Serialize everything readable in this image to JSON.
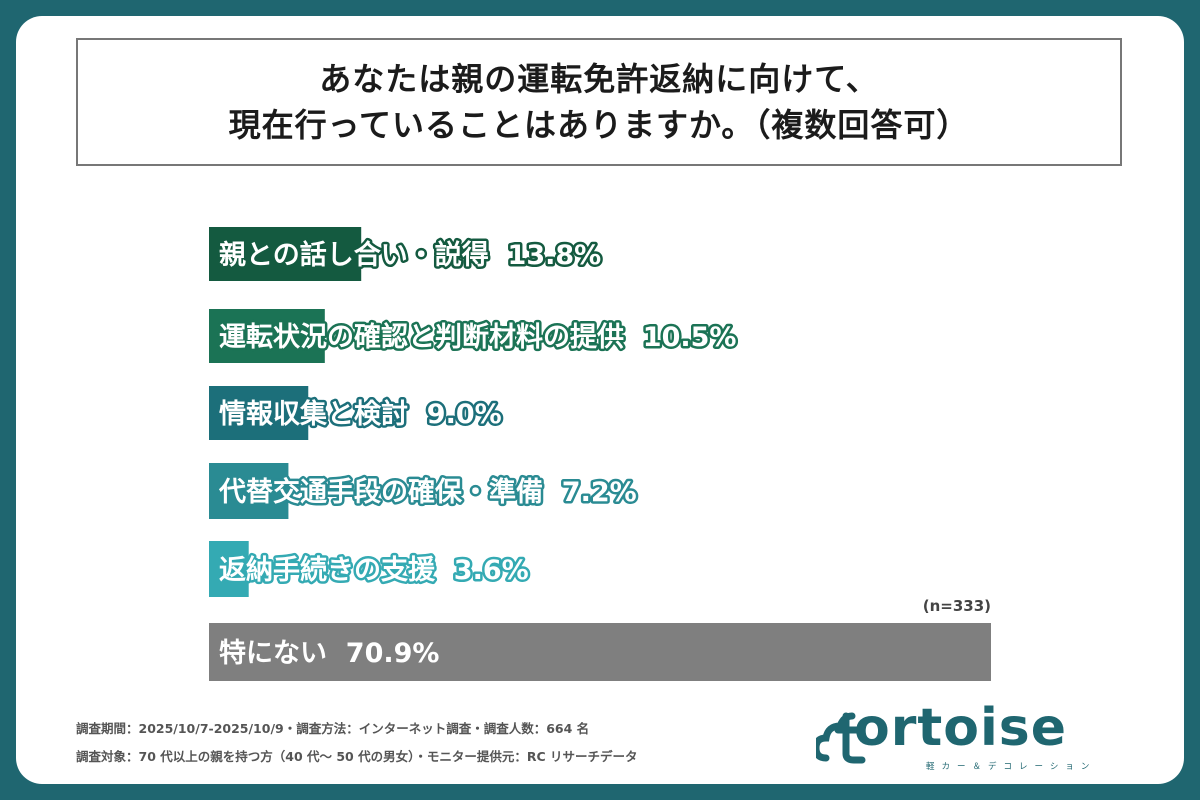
{
  "title_lines": [
    "あなたは親の運転免許返納に向けて、",
    "現在行っていることはありますか。（複数回答可）"
  ],
  "sample_size": "(n=333)",
  "footnotes": [
    "調査期間：2025/10/7-2025/10/9・調査方法：インターネット調査・調査人数：664 名",
    "調査対象：70 代以上の親を持つ方（40 代～ 50 代の男女）・モニター提供元：RC リサーチデータ"
  ],
  "logo": {
    "word": "ortoise",
    "sub": "軽カー＆デコレーション",
    "icon": "cloud-t-icon"
  },
  "colors": {
    "background": "#1f6670",
    "other_bar": "#7f7f7f"
  },
  "chart_data": {
    "type": "bar",
    "orientation": "horizontal",
    "unit": "%",
    "xlim": [
      0,
      70.9
    ],
    "categories": [
      "親との話し合い・説得",
      "運転状況の確認と判断材料の提供",
      "情報収集と検討",
      "代替交通手段の確保・準備",
      "返納手続きの支援",
      "特にない"
    ],
    "values": [
      13.8,
      10.5,
      9.0,
      7.2,
      3.6,
      70.9
    ],
    "value_labels": [
      "13.8%",
      "10.5%",
      "9.0%",
      "7.2%",
      "3.6%",
      "70.9%"
    ],
    "bar_colors": [
      "#145a40",
      "#1b7355",
      "#1c6f7a",
      "#2a8b93",
      "#34aab3",
      "#7f7f7f"
    ]
  }
}
